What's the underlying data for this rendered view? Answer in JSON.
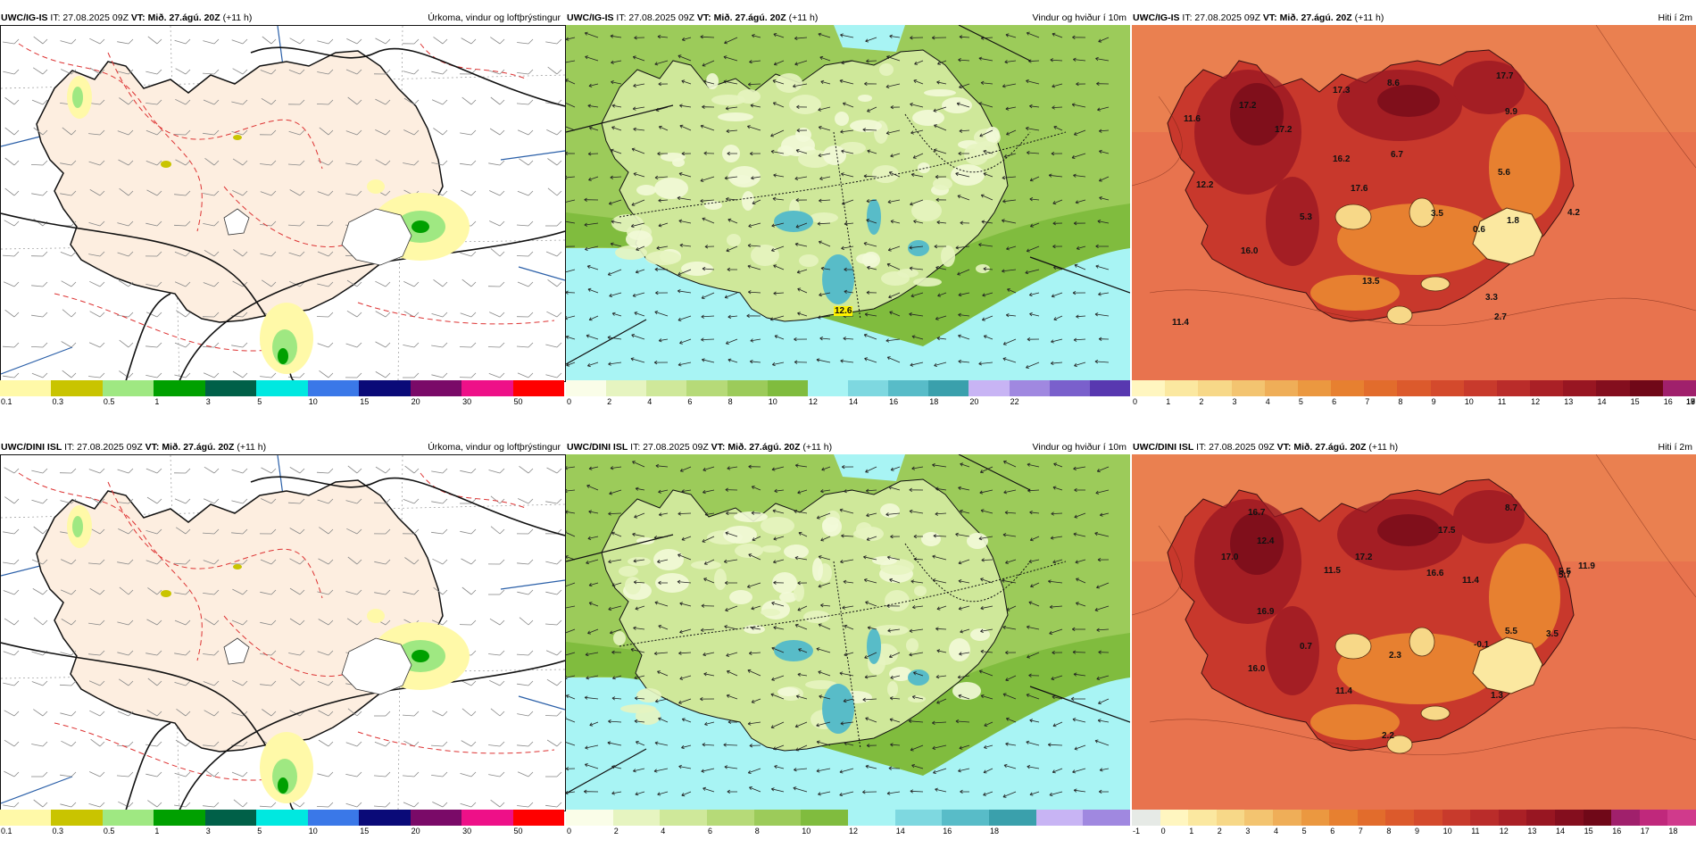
{
  "panels": [
    {
      "id": "igis_precip",
      "header_left_model": "UWC/IG-IS",
      "header_left_it": " IT: 27.08.2025 09Z ",
      "header_vt_label": "VT: Mið. 27.ágú. 20Z",
      "header_lead": " (+11 h)",
      "header_right": "Úrkoma, vindur og loftþrýstingur",
      "colorbar": [
        "#fff9a8",
        "#c9c400",
        "#9fe882",
        "#00a000",
        "#006048",
        "#00e8e0",
        "#3a78e8",
        "#0a0a78",
        "#7a0a68",
        "#ee1088",
        "#ff0000"
      ],
      "ticks": [
        "0.1",
        "0.3",
        "0.5",
        "1",
        "3",
        "5",
        "10",
        "15",
        "20",
        "30",
        "50"
      ],
      "labels": []
    },
    {
      "id": "igis_wind",
      "header_left_model": "UWC/IG-IS",
      "header_left_it": " IT: 27.08.2025 09Z ",
      "header_vt_label": "VT: Mið. 27.ágú. 20Z",
      "header_lead": " (+11 h)",
      "header_right": "Vindur og hviður í 10m",
      "colorbar": [
        "#fafde8",
        "#e6f4c0",
        "#cfe89a",
        "#b6da78",
        "#9ccb5a",
        "#80bc3e",
        "#a8f4f4",
        "#7ed8e0",
        "#58bcc8",
        "#3aa0ac",
        "#c8b4f4",
        "#a088e0",
        "#7a60cc",
        "#5838b0"
      ],
      "ticks": [
        "0",
        "2",
        "4",
        "6",
        "8",
        "10",
        "12",
        "14",
        "16",
        "18",
        "20",
        "22"
      ],
      "labels": [
        "12.6"
      ]
    },
    {
      "id": "igis_temp",
      "header_left_model": "UWC/IG-IS",
      "header_left_it": " IT: 27.08.2025 09Z ",
      "header_vt_label": "VT: Mið. 27.ágú. 20Z",
      "header_lead": " (+11 h)",
      "header_right": "Hiti í 2m",
      "colorbar": [
        "#fff6c0",
        "#fbe8a0",
        "#f7d888",
        "#f3c470",
        "#efae58",
        "#eb9840",
        "#e78030",
        "#e26c2c",
        "#dc5a2c",
        "#d44a2c",
        "#c83a2c",
        "#ba2c2a",
        "#aa2026",
        "#981622",
        "#840e1e",
        "#700818",
        "#a0206c"
      ],
      "ticks": [
        "0",
        "1",
        "2",
        "3",
        "4",
        "5",
        "6",
        "7",
        "8",
        "9",
        "10",
        "11",
        "12",
        "13",
        "14",
        "15",
        "16",
        "17",
        "18",
        "19"
      ],
      "labels": [
        "17.2",
        "11.6",
        "17.2",
        "17.3",
        "8.6",
        "17.7",
        "16.2",
        "6.7",
        "9.9",
        "17.6",
        "5.6",
        "12.2",
        "5.3",
        "3.5",
        "1.8",
        "0.6",
        "4.2",
        "16.0",
        "13.5",
        "3.3",
        "2.7",
        "11.4"
      ]
    },
    {
      "id": "dini_precip",
      "header_left_model": "UWC/DINI ISL",
      "header_left_it": " IT: 27.08.2025 09Z ",
      "header_vt_label": "VT: Mið. 27.ágú. 20Z",
      "header_lead": " (+11 h)",
      "header_right": "Úrkoma, vindur og loftþrýstingur",
      "colorbar": [
        "#fff9a8",
        "#c9c400",
        "#9fe882",
        "#00a000",
        "#006048",
        "#00e8e0",
        "#3a78e8",
        "#0a0a78",
        "#7a0a68",
        "#ee1088",
        "#ff0000"
      ],
      "ticks": [
        "0.1",
        "0.3",
        "0.5",
        "1",
        "3",
        "5",
        "10",
        "15",
        "20",
        "30",
        "50"
      ],
      "labels": []
    },
    {
      "id": "dini_wind",
      "header_left_model": "UWC/DINI ISL",
      "header_left_it": " IT: 27.08.2025 09Z ",
      "header_vt_label": "VT: Mið. 27.ágú. 20Z",
      "header_lead": " (+11 h)",
      "header_right": "Vindur og hviður í 10m",
      "colorbar": [
        "#fafde8",
        "#e6f4c0",
        "#cfe89a",
        "#b6da78",
        "#9ccb5a",
        "#80bc3e",
        "#a8f4f4",
        "#7ed8e0",
        "#58bcc8",
        "#3aa0ac",
        "#c8b4f4",
        "#a088e0"
      ],
      "ticks": [
        "0",
        "2",
        "4",
        "6",
        "8",
        "10",
        "12",
        "14",
        "16",
        "18"
      ],
      "labels": []
    },
    {
      "id": "dini_temp",
      "header_left_model": "UWC/DINI ISL",
      "header_left_it": " IT: 27.08.2025 09Z ",
      "header_vt_label": "VT: Mið. 27.ágú. 20Z",
      "header_lead": " (+11 h)",
      "header_right": "Hiti í 2m",
      "colorbar": [
        "#e6eae6",
        "#fff6c0",
        "#fbe8a0",
        "#f7d888",
        "#f3c470",
        "#efae58",
        "#eb9840",
        "#e78030",
        "#e26c2c",
        "#dc5a2c",
        "#d44a2c",
        "#c83a2c",
        "#ba2c2a",
        "#aa2026",
        "#981622",
        "#840e1e",
        "#700818",
        "#a0206c",
        "#c0287c",
        "#d03a8c"
      ],
      "ticks": [
        "-1",
        "0",
        "1",
        "2",
        "3",
        "4",
        "5",
        "6",
        "7",
        "8",
        "9",
        "10",
        "11",
        "12",
        "13",
        "14",
        "15",
        "16",
        "17",
        "18"
      ],
      "labels": [
        "16.7",
        "8.7",
        "12.4",
        "17.5",
        "17.0",
        "17.2",
        "11.9",
        "5.7",
        "11.5",
        "16.6",
        "11.4",
        "5.5",
        "16.9",
        "5.5",
        "2.3",
        "0.7",
        "-0.1",
        "3.5",
        "16.0",
        "11.4",
        "1.3",
        "2.2"
      ]
    }
  ]
}
